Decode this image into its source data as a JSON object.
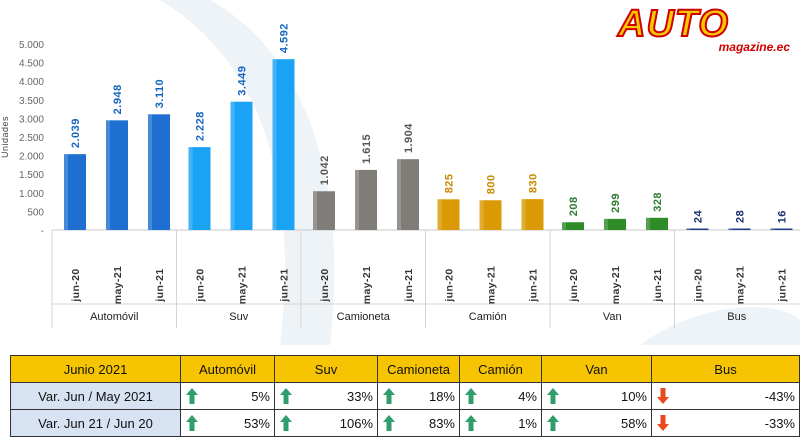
{
  "logo": {
    "word": "AUTO",
    "sub": "magazine.ec"
  },
  "chart_data": {
    "type": "bar",
    "ylabel": "Unidades",
    "ylim": [
      0,
      5000
    ],
    "yticks": [
      "5.000",
      "4.500",
      "4.000",
      "3.500",
      "3.000",
      "2.500",
      "2.000",
      "1.500",
      "1.000",
      "500",
      "-"
    ],
    "groups": [
      {
        "name": "Automóvil",
        "color": "#1f6fd1",
        "label_color": "#1565c0",
        "bars": [
          {
            "cat": "jun-20",
            "value": 2039,
            "label": "2.039"
          },
          {
            "cat": "may-21",
            "value": 2948,
            "label": "2.948"
          },
          {
            "cat": "jun-21",
            "value": 3110,
            "label": "3.110"
          }
        ]
      },
      {
        "name": "Suv",
        "color": "#1aa3f5",
        "label_color": "#1565c0",
        "bars": [
          {
            "cat": "jun-20",
            "value": 2228,
            "label": "2.228"
          },
          {
            "cat": "may-21",
            "value": 3449,
            "label": "3.449"
          },
          {
            "cat": "jun-21",
            "value": 4592,
            "label": "4.592"
          }
        ]
      },
      {
        "name": "Camioneta",
        "color": "#807d79",
        "label_color": "#555555",
        "bars": [
          {
            "cat": "jun-20",
            "value": 1042,
            "label": "1.042"
          },
          {
            "cat": "may-21",
            "value": 1615,
            "label": "1.615"
          },
          {
            "cat": "jun-21",
            "value": 1904,
            "label": "1.904"
          }
        ]
      },
      {
        "name": "Camión",
        "color": "#d99a06",
        "label_color": "#c98a00",
        "bars": [
          {
            "cat": "jun-20",
            "value": 825,
            "label": "825"
          },
          {
            "cat": "may-21",
            "value": 800,
            "label": "800"
          },
          {
            "cat": "jun-21",
            "value": 830,
            "label": "830"
          }
        ]
      },
      {
        "name": "Van",
        "color": "#2e8b28",
        "label_color": "#2e7d32",
        "bars": [
          {
            "cat": "jun-20",
            "value": 208,
            "label": "208"
          },
          {
            "cat": "may-21",
            "value": 299,
            "label": "299"
          },
          {
            "cat": "jun-21",
            "value": 328,
            "label": "328"
          }
        ]
      },
      {
        "name": "Bus",
        "color": "#1f3c88",
        "label_color": "#1a2f6e",
        "bars": [
          {
            "cat": "jun-20",
            "value": 24,
            "label": "24"
          },
          {
            "cat": "may-21",
            "value": 28,
            "label": "28"
          },
          {
            "cat": "jun-21",
            "value": 16,
            "label": "16"
          }
        ]
      }
    ]
  },
  "table": {
    "header": [
      "Junio 2021",
      "Automóvil",
      "Suv",
      "Camioneta",
      "Camión",
      "Van",
      "Bus"
    ],
    "rows": [
      {
        "label": "Var. Jun / May 2021",
        "cells": [
          {
            "value": "5%",
            "dir": "up"
          },
          {
            "value": "33%",
            "dir": "up"
          },
          {
            "value": "18%",
            "dir": "up"
          },
          {
            "value": "4%",
            "dir": "up"
          },
          {
            "value": "10%",
            "dir": "up"
          },
          {
            "value": "-43%",
            "dir": "down"
          }
        ]
      },
      {
        "label": "Var. Jun 21 / Jun 20",
        "cells": [
          {
            "value": "53%",
            "dir": "up"
          },
          {
            "value": "106%",
            "dir": "up"
          },
          {
            "value": "83%",
            "dir": "up"
          },
          {
            "value": "1%",
            "dir": "up"
          },
          {
            "value": "58%",
            "dir": "up"
          },
          {
            "value": "-33%",
            "dir": "down"
          }
        ]
      }
    ],
    "colors": {
      "header_bg": "#f6c400",
      "label_bg": "#d7e2f3",
      "up": "#2f9e6a",
      "down": "#e8491d"
    }
  }
}
